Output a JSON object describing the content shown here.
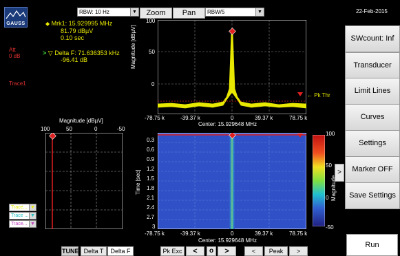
{
  "top": {
    "rbw_select": "RBW: 10 Hz",
    "zoom_label": "Zoom",
    "pan_label": "Pan",
    "rbw_ratio_select": "RBW/5",
    "date": "22-Feb-2015"
  },
  "logo": {
    "text": "GAUSS"
  },
  "left": {
    "att_label": "Att",
    "att_value": "0 dB",
    "trace_label": "Trace1",
    "marker1_line1": "Mrk1: 15.929995 MHz",
    "marker1_line2": "81.79 dBµV",
    "marker1_line3": "0.10 sec",
    "delta_line1": "Delta F: 71.636353 kHz",
    "delta_line2": "-96.41 dB",
    "trace_selects": [
      "Trace...",
      "Trace ...",
      "Trace..."
    ]
  },
  "spectrum": {
    "ylabel": "Magnitude [dBµV]",
    "ytick_labels": [
      "100",
      "50",
      "0"
    ],
    "xtick_labels": [
      "-78.75 k",
      "-39.37 k",
      "0",
      "39.37 k",
      "78.75 k"
    ],
    "xlabel": "Center: 15.929648 MHz",
    "pk_thr_label": "Pk Thr"
  },
  "magnitude_panel": {
    "title": "Magnitude [dBµV]",
    "tick_labels": [
      "100",
      "50",
      "0",
      "-50"
    ]
  },
  "waterfall": {
    "ylabel": "Time [sec]",
    "ytick_labels": [
      "0.3",
      "0.6",
      "0.9",
      "1.2",
      "1.5",
      "1.8",
      "2.1",
      "2.4",
      "2.7",
      "3"
    ],
    "xtick_labels": [
      "-78.75 k",
      "-39.37 k",
      "0",
      "39.37 k",
      "78.75 k"
    ],
    "xlabel": "Center: 15.929648 MHz"
  },
  "colorbar": {
    "label": "Magnitude",
    "tick_labels": [
      "100",
      "50",
      "0",
      "-50"
    ],
    "toggle_label": ">"
  },
  "side_buttons": [
    "SWcount: Inf",
    "Transducer",
    "Limit Lines",
    "Curves",
    "Settings",
    "Marker OFF",
    "Save Settings"
  ],
  "run_label": "Run",
  "bottom_buttons": {
    "tune": "TUNE",
    "delta_t": "Delta T",
    "delta_f": "Delta F",
    "pk_exc": "Pk Exc",
    "prev_big": "<",
    "center": "o",
    "next_big": ">",
    "prev_small": "<",
    "peak": "Peak",
    "next_small": ">"
  },
  "colors": {
    "trace": "#e8e800",
    "marker": "#e02020",
    "waterfall_bg": "#3050c8",
    "accent_text": "#e8e800"
  }
}
